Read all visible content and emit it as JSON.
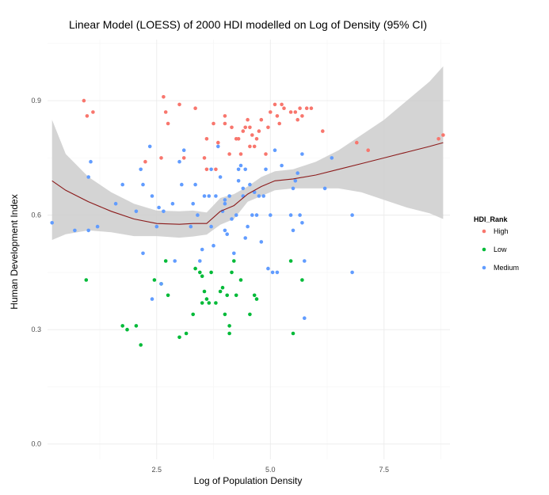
{
  "chart_data": {
    "type": "scatter",
    "title": "Linear Model (LOESS) of 2000 HDI modelled on Log of Density (95% CI)",
    "xlabel": "Log of Population Density",
    "ylabel": "Human Development Index",
    "xlim": [
      0.1,
      8.95
    ],
    "ylim": [
      -0.04,
      1.06
    ],
    "xticks": [
      2.5,
      5.0,
      7.5
    ],
    "xtick_labels": [
      "2.5",
      "5.0",
      "7.5"
    ],
    "yticks": [
      0.0,
      0.3,
      0.6,
      0.9
    ],
    "ytick_labels": [
      "0.0",
      "0.3",
      "0.6",
      "0.9"
    ],
    "grid": true,
    "legend": {
      "title": "HDI_Rank",
      "placement": "right",
      "entries": [
        {
          "name": "High",
          "color": "#F8766D"
        },
        {
          "name": "Low",
          "color": "#00BA38"
        },
        {
          "name": "Medium",
          "color": "#619CFF"
        }
      ]
    },
    "series": [
      {
        "name": "High",
        "color": "#F8766D",
        "points": [
          [
            0.9,
            0.9
          ],
          [
            0.97,
            0.86
          ],
          [
            1.1,
            0.87
          ],
          [
            2.25,
            0.74
          ],
          [
            2.6,
            0.75
          ],
          [
            2.65,
            0.91
          ],
          [
            2.7,
            0.87
          ],
          [
            2.75,
            0.84
          ],
          [
            3.0,
            0.89
          ],
          [
            3.1,
            0.75
          ],
          [
            3.35,
            0.88
          ],
          [
            3.55,
            0.75
          ],
          [
            3.6,
            0.8
          ],
          [
            3.6,
            0.72
          ],
          [
            3.75,
            0.84
          ],
          [
            3.8,
            0.72
          ],
          [
            3.85,
            0.79
          ],
          [
            4.0,
            0.86
          ],
          [
            4.0,
            0.84
          ],
          [
            4.1,
            0.76
          ],
          [
            4.15,
            0.83
          ],
          [
            4.25,
            0.8
          ],
          [
            4.3,
            0.8
          ],
          [
            4.35,
            0.76
          ],
          [
            4.4,
            0.82
          ],
          [
            4.45,
            0.83
          ],
          [
            4.5,
            0.85
          ],
          [
            4.55,
            0.78
          ],
          [
            4.55,
            0.83
          ],
          [
            4.6,
            0.81
          ],
          [
            4.65,
            0.78
          ],
          [
            4.7,
            0.8
          ],
          [
            4.75,
            0.82
          ],
          [
            4.8,
            0.85
          ],
          [
            4.9,
            0.76
          ],
          [
            4.95,
            0.83
          ],
          [
            5.0,
            0.87
          ],
          [
            5.1,
            0.89
          ],
          [
            5.15,
            0.86
          ],
          [
            5.2,
            0.84
          ],
          [
            5.25,
            0.89
          ],
          [
            5.3,
            0.88
          ],
          [
            5.45,
            0.87
          ],
          [
            5.55,
            0.87
          ],
          [
            5.6,
            0.85
          ],
          [
            5.65,
            0.88
          ],
          [
            5.7,
            0.86
          ],
          [
            5.8,
            0.88
          ],
          [
            5.9,
            0.88
          ],
          [
            6.15,
            0.82
          ],
          [
            6.9,
            0.79
          ],
          [
            7.15,
            0.77
          ],
          [
            8.7,
            0.8
          ],
          [
            8.8,
            0.81
          ]
        ]
      },
      {
        "name": "Low",
        "color": "#00BA38",
        "points": [
          [
            0.95,
            0.43
          ],
          [
            1.75,
            0.31
          ],
          [
            1.85,
            0.3
          ],
          [
            2.05,
            0.31
          ],
          [
            2.15,
            0.26
          ],
          [
            2.45,
            0.43
          ],
          [
            2.6,
            0.42
          ],
          [
            2.7,
            0.48
          ],
          [
            2.75,
            0.39
          ],
          [
            3.0,
            0.28
          ],
          [
            3.15,
            0.29
          ],
          [
            3.3,
            0.34
          ],
          [
            3.35,
            0.46
          ],
          [
            3.45,
            0.45
          ],
          [
            3.5,
            0.37
          ],
          [
            3.5,
            0.44
          ],
          [
            3.55,
            0.4
          ],
          [
            3.6,
            0.38
          ],
          [
            3.65,
            0.37
          ],
          [
            3.7,
            0.45
          ],
          [
            3.8,
            0.37
          ],
          [
            3.9,
            0.4
          ],
          [
            3.95,
            0.41
          ],
          [
            4.0,
            0.34
          ],
          [
            4.05,
            0.39
          ],
          [
            4.1,
            0.29
          ],
          [
            4.1,
            0.31
          ],
          [
            4.15,
            0.45
          ],
          [
            4.2,
            0.48
          ],
          [
            4.25,
            0.39
          ],
          [
            4.35,
            0.43
          ],
          [
            4.55,
            0.34
          ],
          [
            4.65,
            0.39
          ],
          [
            4.7,
            0.38
          ],
          [
            5.45,
            0.48
          ],
          [
            5.5,
            0.29
          ],
          [
            5.7,
            0.43
          ]
        ]
      },
      {
        "name": "Medium",
        "color": "#619CFF",
        "points": [
          [
            0.2,
            0.58
          ],
          [
            0.7,
            0.56
          ],
          [
            1.0,
            0.56
          ],
          [
            1.0,
            0.7
          ],
          [
            1.05,
            0.74
          ],
          [
            1.2,
            0.57
          ],
          [
            1.6,
            0.63
          ],
          [
            1.75,
            0.68
          ],
          [
            2.05,
            0.61
          ],
          [
            2.15,
            0.72
          ],
          [
            2.2,
            0.5
          ],
          [
            2.2,
            0.68
          ],
          [
            2.35,
            0.78
          ],
          [
            2.4,
            0.38
          ],
          [
            2.4,
            0.65
          ],
          [
            2.5,
            0.57
          ],
          [
            2.55,
            0.62
          ],
          [
            2.6,
            0.42
          ],
          [
            2.65,
            0.61
          ],
          [
            2.85,
            0.63
          ],
          [
            2.9,
            0.48
          ],
          [
            3.0,
            0.74
          ],
          [
            3.05,
            0.68
          ],
          [
            3.1,
            0.77
          ],
          [
            3.25,
            0.57
          ],
          [
            3.3,
            0.63
          ],
          [
            3.35,
            0.68
          ],
          [
            3.4,
            0.6
          ],
          [
            3.45,
            0.48
          ],
          [
            3.5,
            0.51
          ],
          [
            3.55,
            0.65
          ],
          [
            3.65,
            0.65
          ],
          [
            3.7,
            0.57
          ],
          [
            3.7,
            0.72
          ],
          [
            3.75,
            0.52
          ],
          [
            3.8,
            0.65
          ],
          [
            3.85,
            0.78
          ],
          [
            3.9,
            0.7
          ],
          [
            3.95,
            0.61
          ],
          [
            4.0,
            0.56
          ],
          [
            4.0,
            0.63
          ],
          [
            4.0,
            0.64
          ],
          [
            4.05,
            0.55
          ],
          [
            4.1,
            0.65
          ],
          [
            4.15,
            0.59
          ],
          [
            4.2,
            0.5
          ],
          [
            4.25,
            0.6
          ],
          [
            4.3,
            0.69
          ],
          [
            4.3,
            0.72
          ],
          [
            4.35,
            0.73
          ],
          [
            4.4,
            0.65
          ],
          [
            4.4,
            0.67
          ],
          [
            4.45,
            0.72
          ],
          [
            4.45,
            0.54
          ],
          [
            4.5,
            0.57
          ],
          [
            4.55,
            0.68
          ],
          [
            4.6,
            0.6
          ],
          [
            4.65,
            0.66
          ],
          [
            4.7,
            0.6
          ],
          [
            4.75,
            0.65
          ],
          [
            4.8,
            0.53
          ],
          [
            4.85,
            0.65
          ],
          [
            4.9,
            0.72
          ],
          [
            4.95,
            0.46
          ],
          [
            5.0,
            0.6
          ],
          [
            5.05,
            0.45
          ],
          [
            5.1,
            0.77
          ],
          [
            5.15,
            0.45
          ],
          [
            5.25,
            0.73
          ],
          [
            5.45,
            0.6
          ],
          [
            5.5,
            0.56
          ],
          [
            5.5,
            0.67
          ],
          [
            5.55,
            0.69
          ],
          [
            5.6,
            0.71
          ],
          [
            5.65,
            0.6
          ],
          [
            5.7,
            0.58
          ],
          [
            5.7,
            0.76
          ],
          [
            5.75,
            0.48
          ],
          [
            5.75,
            0.33
          ],
          [
            6.2,
            0.67
          ],
          [
            6.35,
            0.75
          ],
          [
            6.8,
            0.6
          ],
          [
            6.8,
            0.45
          ]
        ]
      }
    ],
    "loess": {
      "name": "LOESS fit",
      "color": "#8B1A1A",
      "ci_color": "#cccccc",
      "x": [
        0.2,
        0.5,
        1.0,
        1.5,
        2.0,
        2.5,
        3.0,
        3.3,
        3.6,
        3.9,
        4.2,
        4.5,
        4.8,
        5.1,
        5.5,
        6.0,
        6.5,
        7.0,
        7.5,
        8.0,
        8.5,
        8.8
      ],
      "y": [
        0.69,
        0.665,
        0.635,
        0.61,
        0.59,
        0.578,
        0.576,
        0.578,
        0.578,
        0.61,
        0.625,
        0.655,
        0.675,
        0.69,
        0.695,
        0.705,
        0.72,
        0.735,
        0.75,
        0.765,
        0.78,
        0.79
      ],
      "ci_upper": [
        0.85,
        0.76,
        0.7,
        0.66,
        0.63,
        0.612,
        0.61,
        0.612,
        0.607,
        0.645,
        0.655,
        0.675,
        0.7,
        0.715,
        0.72,
        0.74,
        0.77,
        0.81,
        0.85,
        0.9,
        0.95,
        0.99
      ],
      "ci_lower": [
        0.535,
        0.55,
        0.56,
        0.555,
        0.545,
        0.545,
        0.541,
        0.544,
        0.549,
        0.575,
        0.59,
        0.635,
        0.65,
        0.665,
        0.67,
        0.67,
        0.67,
        0.66,
        0.64,
        0.62,
        0.605,
        0.59
      ]
    }
  }
}
